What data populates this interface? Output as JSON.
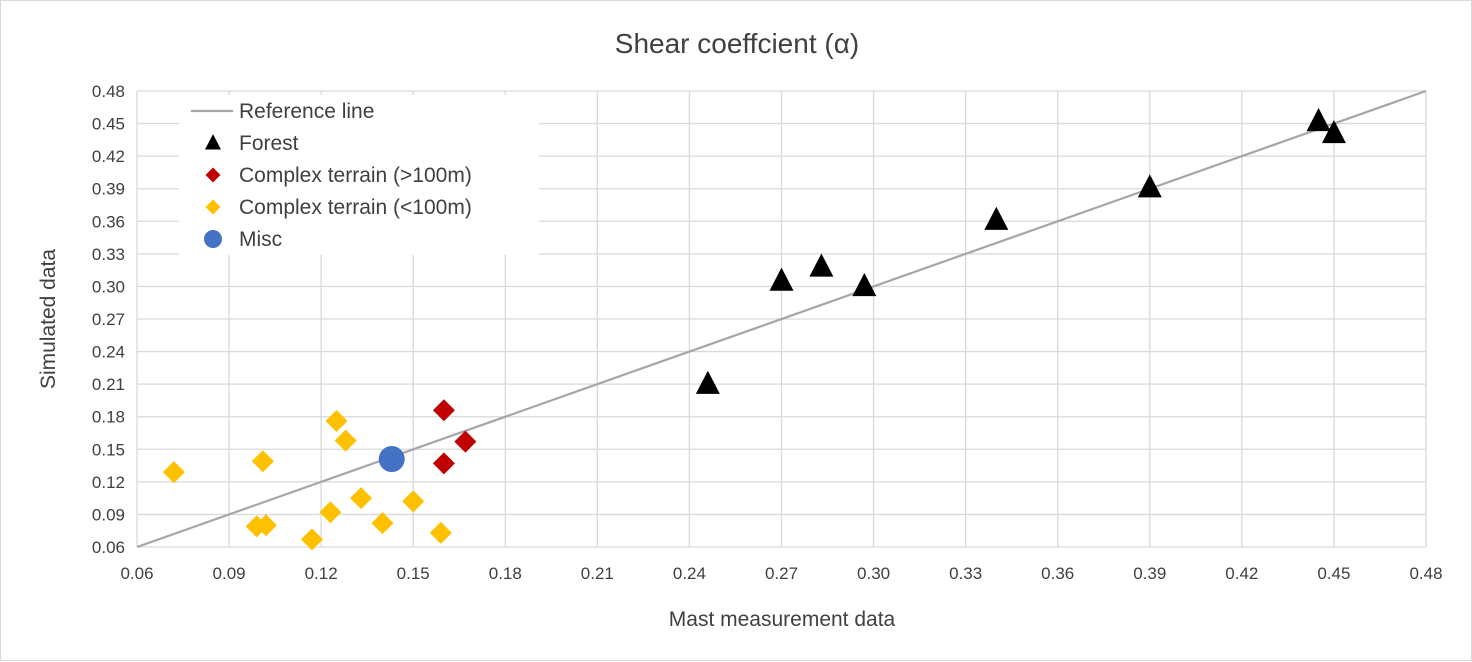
{
  "chart_data": {
    "type": "scatter",
    "title": "Shear coeffcient (α)",
    "xlabel": "Mast measurement data",
    "ylabel": "Simulated data",
    "xlim": [
      0.06,
      0.48
    ],
    "ylim": [
      0.06,
      0.48
    ],
    "xticks": [
      "0.06",
      "0.09",
      "0.12",
      "0.15",
      "0.18",
      "0.21",
      "0.24",
      "0.27",
      "0.30",
      "0.33",
      "0.36",
      "0.39",
      "0.42",
      "0.45",
      "0.48"
    ],
    "yticks": [
      "0.06",
      "0.09",
      "0.12",
      "0.15",
      "0.18",
      "0.21",
      "0.24",
      "0.27",
      "0.30",
      "0.33",
      "0.36",
      "0.39",
      "0.42",
      "0.45",
      "0.48"
    ],
    "grid": true,
    "legend_position": "top-left",
    "reference_line": {
      "name": "Reference line",
      "color": "#a6a6a6",
      "points": [
        [
          0.06,
          0.06
        ],
        [
          0.48,
          0.48
        ]
      ]
    },
    "series": [
      {
        "name": "Forest",
        "marker": "triangle",
        "color": "#000000",
        "points": [
          [
            0.246,
            0.21
          ],
          [
            0.27,
            0.305
          ],
          [
            0.283,
            0.318
          ],
          [
            0.297,
            0.3
          ],
          [
            0.34,
            0.361
          ],
          [
            0.39,
            0.391
          ],
          [
            0.445,
            0.452
          ],
          [
            0.45,
            0.441
          ]
        ]
      },
      {
        "name": "Complex terrain (>100m)",
        "marker": "diamond",
        "color": "#c00000",
        "points": [
          [
            0.16,
            0.186
          ],
          [
            0.167,
            0.157
          ],
          [
            0.16,
            0.137
          ]
        ]
      },
      {
        "name": "Complex terrain (<100m)",
        "marker": "diamond",
        "color": "#ffc000",
        "points": [
          [
            0.072,
            0.129
          ],
          [
            0.099,
            0.079
          ],
          [
            0.102,
            0.08
          ],
          [
            0.101,
            0.139
          ],
          [
            0.117,
            0.067
          ],
          [
            0.123,
            0.092
          ],
          [
            0.125,
            0.176
          ],
          [
            0.128,
            0.158
          ],
          [
            0.133,
            0.105
          ],
          [
            0.14,
            0.082
          ],
          [
            0.15,
            0.102
          ],
          [
            0.159,
            0.073
          ]
        ]
      },
      {
        "name": "Misc",
        "marker": "circle",
        "color": "#4472c4",
        "points": [
          [
            0.143,
            0.141
          ]
        ]
      }
    ]
  }
}
